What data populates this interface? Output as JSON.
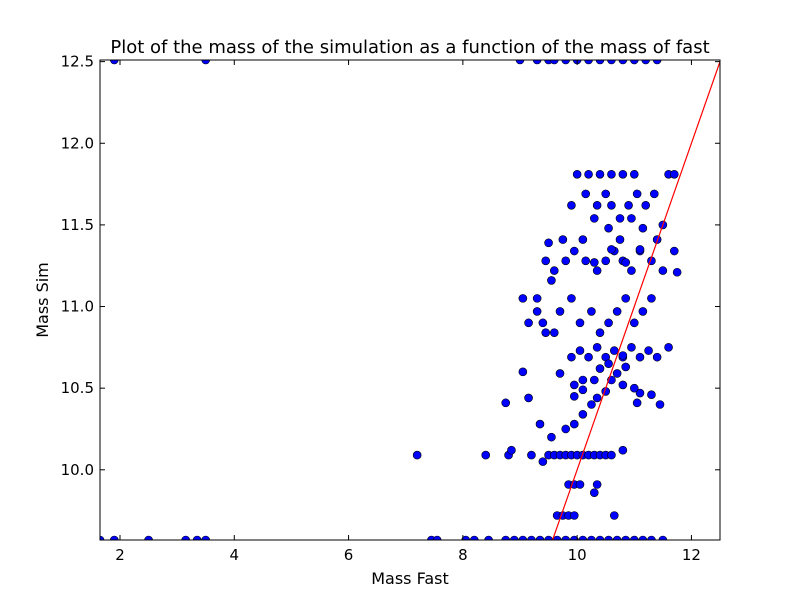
{
  "chart_data": {
    "type": "scatter",
    "title": "Plot of the mass of the simulation as a function of the mass of fast",
    "xlabel": "Mass Fast",
    "ylabel": "Mass Sim",
    "xlim": [
      1.65,
      12.5
    ],
    "ylim": [
      9.57,
      12.51
    ],
    "xticks": [
      2,
      4,
      6,
      8,
      10,
      12
    ],
    "yticks": [
      10.0,
      10.5,
      11.0,
      11.5,
      12.0,
      12.5
    ],
    "xtick_labels": [
      "2",
      "4",
      "6",
      "8",
      "10",
      "12"
    ],
    "ytick_labels": [
      "10.0",
      "10.5",
      "11.0",
      "11.5",
      "12.0",
      "12.5"
    ],
    "grid": false,
    "legend": "none",
    "colors": {
      "points": "#0000ff",
      "point_edge": "#000000",
      "fit_line": "#ff0000"
    },
    "series": [
      {
        "kind": "points",
        "x": [
          1.9,
          3.5,
          9.0,
          9.3,
          9.5,
          9.6,
          9.8,
          10.0,
          10.2,
          10.4,
          10.6,
          10.8,
          11.0,
          11.2,
          11.4,
          1.65,
          1.9,
          2.5,
          3.15,
          3.35,
          3.5,
          7.45,
          7.55,
          8.05,
          8.2,
          8.45,
          8.75,
          8.9,
          9.05,
          9.2,
          9.35,
          9.5,
          9.65,
          9.8,
          9.95,
          10.1,
          10.25,
          10.4,
          10.55,
          10.7,
          10.85,
          11.0,
          11.15,
          11.3,
          11.5,
          7.2,
          8.4,
          8.8,
          8.85,
          9.2,
          9.4,
          9.5,
          9.6,
          9.7,
          9.8,
          9.9,
          10.0,
          10.1,
          10.2,
          10.3,
          10.4,
          10.5,
          10.6,
          10.8,
          9.65,
          9.75,
          9.85,
          9.95,
          10.65,
          9.85,
          9.95,
          10.05,
          10.3,
          10.35,
          8.75,
          9.15,
          9.05,
          9.35,
          9.55,
          9.8,
          9.95,
          10.1,
          10.25,
          10.35,
          10.5,
          10.6,
          10.7,
          10.85,
          11.05,
          9.05,
          9.3,
          9.15,
          9.3,
          9.45,
          9.7,
          9.9,
          10.05,
          10.25,
          10.4,
          10.55,
          10.7,
          10.85,
          11.0,
          11.15,
          11.3,
          9.4,
          9.6,
          9.45,
          9.6,
          9.8,
          9.95,
          10.15,
          10.35,
          10.5,
          10.65,
          10.8,
          10.95,
          11.1,
          11.3,
          11.5,
          11.7,
          9.5,
          9.55,
          9.75,
          9.9,
          10.1,
          10.3,
          10.55,
          10.75,
          10.95,
          11.15,
          11.4,
          11.5,
          9.9,
          10.05,
          10.2,
          10.35,
          10.5,
          10.65,
          10.8,
          10.95,
          11.1,
          11.25,
          11.4,
          11.6,
          9.7,
          9.95,
          10.1,
          10.3,
          10.8,
          11.1,
          11.3,
          11.45,
          10.0,
          10.2,
          10.4,
          10.6,
          10.8,
          11.0,
          11.6,
          11.7,
          11.75,
          10.15,
          10.35,
          10.5,
          10.6,
          10.75,
          10.9,
          11.05,
          11.2,
          11.35,
          10.3,
          10.6,
          10.85,
          11.1,
          9.95,
          10.1,
          10.4,
          10.55,
          10.8,
          11.0
        ],
        "y": [
          12.51,
          12.51,
          12.51,
          12.51,
          12.51,
          12.51,
          12.51,
          12.51,
          12.51,
          12.51,
          12.51,
          12.51,
          12.51,
          12.51,
          12.51,
          9.57,
          9.57,
          9.57,
          9.57,
          9.57,
          9.57,
          9.57,
          9.57,
          9.57,
          9.57,
          9.57,
          9.57,
          9.57,
          9.57,
          9.57,
          9.57,
          9.57,
          9.57,
          9.57,
          9.57,
          9.57,
          9.57,
          9.57,
          9.57,
          9.57,
          9.57,
          9.57,
          9.57,
          9.57,
          9.57,
          10.09,
          10.09,
          10.09,
          10.12,
          10.09,
          10.05,
          10.09,
          10.09,
          10.09,
          10.09,
          10.09,
          10.09,
          10.09,
          10.09,
          10.09,
          10.09,
          10.09,
          10.09,
          10.12,
          9.72,
          9.72,
          9.72,
          9.72,
          9.72,
          9.91,
          9.91,
          9.91,
          9.86,
          9.91,
          10.41,
          10.44,
          10.6,
          10.28,
          10.2,
          10.25,
          10.28,
          10.34,
          10.4,
          10.44,
          10.48,
          10.55,
          10.59,
          10.63,
          10.41,
          11.05,
          11.05,
          10.9,
          10.97,
          10.84,
          10.97,
          11.05,
          10.9,
          10.97,
          10.84,
          10.9,
          10.97,
          11.05,
          10.9,
          10.97,
          11.05,
          10.9,
          10.84,
          11.28,
          11.22,
          11.28,
          11.34,
          11.28,
          11.22,
          11.28,
          11.34,
          11.28,
          11.22,
          11.34,
          11.28,
          11.22,
          11.34,
          11.39,
          11.16,
          11.41,
          11.62,
          11.41,
          11.54,
          11.48,
          11.41,
          11.54,
          11.48,
          11.41,
          11.5,
          10.69,
          10.73,
          10.69,
          10.75,
          10.69,
          10.73,
          10.69,
          10.75,
          10.69,
          10.73,
          10.69,
          10.75,
          10.59,
          10.52,
          10.49,
          10.55,
          10.52,
          10.47,
          10.46,
          10.4,
          11.81,
          11.81,
          11.81,
          11.81,
          11.81,
          11.81,
          11.81,
          11.81,
          11.21,
          11.69,
          11.62,
          11.69,
          11.62,
          11.54,
          11.62,
          11.69,
          11.62,
          11.69,
          11.27,
          11.35,
          11.27,
          11.35,
          10.45,
          10.55,
          10.62,
          10.65,
          10.7,
          10.5
        ]
      },
      {
        "kind": "line",
        "x": [
          9.57,
          12.51
        ],
        "y": [
          9.57,
          12.51
        ]
      }
    ]
  }
}
